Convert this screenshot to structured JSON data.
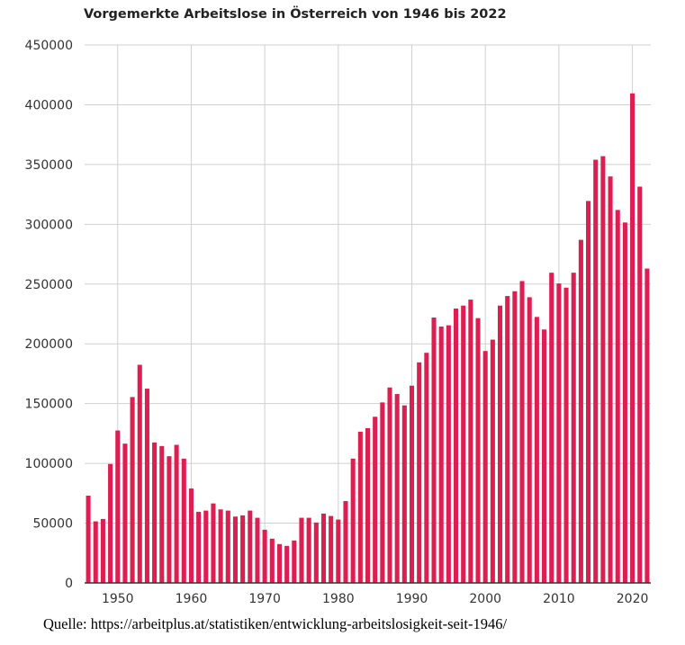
{
  "chart_data": {
    "type": "bar",
    "title": "Vorgemerkte Arbeitslose in Österreich von 1946 bis 2022",
    "xlabel": "",
    "ylabel": "",
    "ylim": [
      0,
      450000
    ],
    "yticks": [
      0,
      50000,
      100000,
      150000,
      200000,
      250000,
      300000,
      350000,
      400000,
      450000
    ],
    "xticks": [
      1950,
      1960,
      1970,
      1980,
      1990,
      2000,
      2010,
      2020
    ],
    "grid": true,
    "bar_color": "#DC1E50",
    "x": [
      1946,
      1947,
      1948,
      1949,
      1950,
      1951,
      1952,
      1953,
      1954,
      1955,
      1956,
      1957,
      1958,
      1959,
      1960,
      1961,
      1962,
      1963,
      1964,
      1965,
      1966,
      1967,
      1968,
      1969,
      1970,
      1971,
      1972,
      1973,
      1974,
      1975,
      1976,
      1977,
      1978,
      1979,
      1980,
      1981,
      1982,
      1983,
      1984,
      1985,
      1986,
      1987,
      1988,
      1989,
      1990,
      1991,
      1992,
      1993,
      1994,
      1995,
      1996,
      1997,
      1998,
      1999,
      2000,
      2001,
      2002,
      2003,
      2004,
      2005,
      2006,
      2007,
      2008,
      2009,
      2010,
      2011,
      2012,
      2013,
      2014,
      2015,
      2016,
      2017,
      2018,
      2019,
      2020,
      2021,
      2022
    ],
    "values": [
      73000,
      51500,
      53500,
      99500,
      127500,
      116500,
      155500,
      182500,
      162500,
      117500,
      114500,
      106000,
      115500,
      104000,
      79000,
      59500,
      60500,
      66500,
      61500,
      60500,
      55500,
      56500,
      60500,
      54500,
      44500,
      37000,
      32500,
      31000,
      35500,
      54500,
      54500,
      50500,
      58000,
      56000,
      53000,
      68500,
      104000,
      126500,
      129500,
      139000,
      151000,
      163500,
      158000,
      148500,
      165000,
      184500,
      192500,
      222000,
      214500,
      215500,
      229500,
      232000,
      237000,
      221500,
      194000,
      203500,
      232000,
      240000,
      244000,
      252500,
      239000,
      222500,
      212000,
      259500,
      250500,
      247000,
      259500,
      287000,
      319500,
      354000,
      357000,
      340000,
      312000,
      301500,
      409500,
      331500,
      263000
    ]
  },
  "source_note": "Quelle: https://arbeitplus.at/statistiken/entwicklung-arbeitslosigkeit-seit-1946/"
}
